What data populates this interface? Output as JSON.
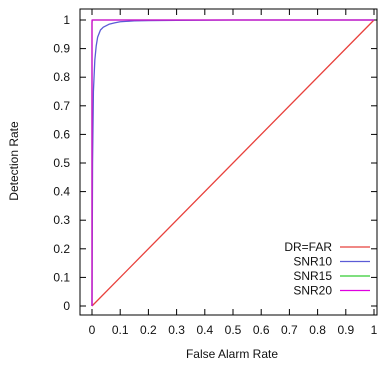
{
  "chart_data": {
    "type": "line",
    "title": "",
    "xlabel": "False Alarm Rate",
    "ylabel": "Detection Rate",
    "xlim": [
      0,
      1
    ],
    "ylim": [
      0,
      1
    ],
    "x_ticks": [
      0,
      0.1,
      0.2,
      0.3,
      0.4,
      0.5,
      0.6,
      0.7,
      0.8,
      0.9,
      1
    ],
    "x_tick_labels": [
      "0",
      "0.1",
      "0.2",
      "0.3",
      "0.4",
      "0.5",
      "0.6",
      "0.7",
      "0.8",
      "0.9",
      "1"
    ],
    "y_ticks": [
      0,
      0.1,
      0.2,
      0.3,
      0.4,
      0.5,
      0.6,
      0.7,
      0.8,
      0.9,
      1
    ],
    "y_tick_labels": [
      "0",
      "0.1",
      "0.2",
      "0.3",
      "0.4",
      "0.5",
      "0.6",
      "0.7",
      "0.8",
      "0.9",
      "1"
    ],
    "grid": false,
    "legend_position": "bottom-right",
    "series": [
      {
        "name": "DR=FAR",
        "color": "#e8413c",
        "x": [
          0,
          1
        ],
        "y": [
          0,
          1
        ]
      },
      {
        "name": "SNR10",
        "color": "#5b5bd6",
        "x": [
          0,
          0.002,
          0.005,
          0.01,
          0.015,
          0.02,
          0.03,
          0.04,
          0.06,
          0.08,
          0.1,
          0.15,
          0.2,
          0.3,
          0.5,
          1
        ],
        "y": [
          0,
          0.5,
          0.75,
          0.86,
          0.91,
          0.94,
          0.965,
          0.975,
          0.985,
          0.99,
          0.994,
          0.997,
          0.998,
          0.999,
          1,
          1
        ]
      },
      {
        "name": "SNR15",
        "color": "#33cc33",
        "x": [
          0,
          0,
          0.001,
          1
        ],
        "y": [
          0,
          0.99,
          1,
          1
        ]
      },
      {
        "name": "SNR20",
        "color": "#e000e0",
        "x": [
          0,
          0,
          1
        ],
        "y": [
          0,
          1,
          1
        ]
      }
    ]
  }
}
